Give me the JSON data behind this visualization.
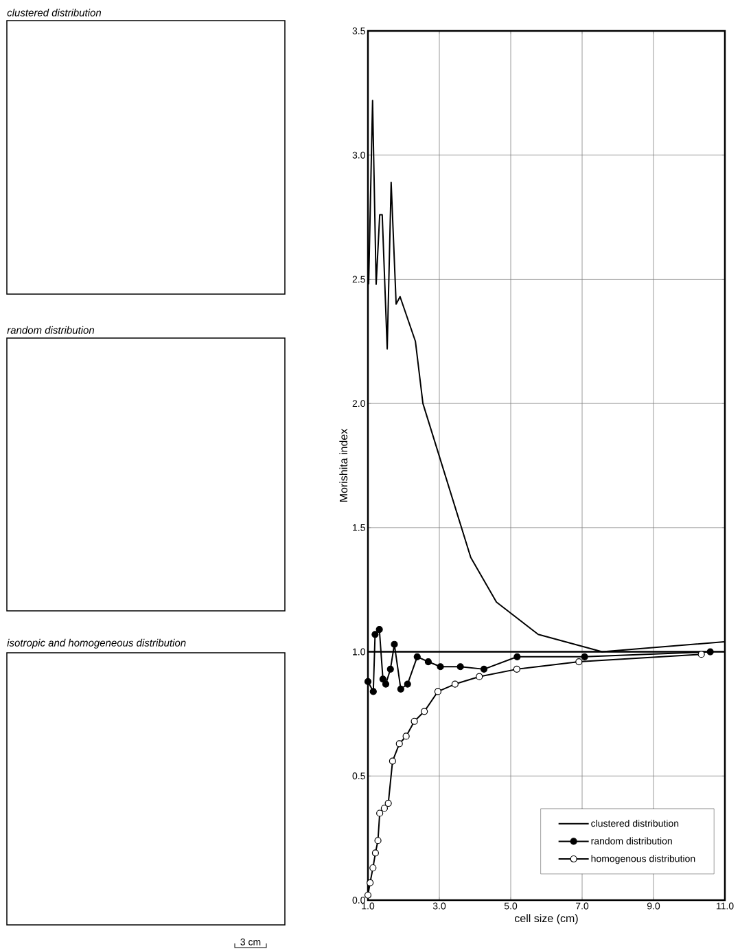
{
  "chart_data": [
    {
      "type": "other",
      "title": "clustered distribution"
    },
    {
      "type": "other",
      "title": "random distribution"
    },
    {
      "type": "other",
      "title": "isotropic and homogeneous distribution",
      "annotations": [
        "3 cm"
      ]
    },
    {
      "type": "line",
      "xlabel": "cell size (cm)",
      "ylabel": "Morishita index",
      "xlim": [
        1.0,
        11.0
      ],
      "ylim": [
        0.0,
        3.5
      ],
      "xticks": [
        {
          "value": 1,
          "label": "1.0"
        },
        {
          "value": 3,
          "label": "3.0"
        },
        {
          "value": 5,
          "label": "5.0"
        },
        {
          "value": 7,
          "label": "7.0"
        },
        {
          "value": 9,
          "label": "9.0"
        },
        {
          "value": 11,
          "label": "11.0"
        }
      ],
      "yticks": [
        {
          "value": 0,
          "label": "0.0"
        },
        {
          "value": 0.5,
          "label": "0.5"
        },
        {
          "value": 1,
          "label": "1.0"
        },
        {
          "value": 1.5,
          "label": "1.5"
        },
        {
          "value": 2,
          "label": "2.0"
        },
        {
          "value": 2.5,
          "label": "2.5"
        },
        {
          "value": 3,
          "label": "3.0"
        },
        {
          "value": 3.5,
          "label": "3.5"
        }
      ],
      "grid": true,
      "legend": "bottom right",
      "ref_lines": [
        {
          "axis": "y",
          "value": 1.0,
          "color": "#000000"
        }
      ],
      "series": [
        {
          "name": "clustered distribution",
          "color": "#000000",
          "marker": "none",
          "x": [
            1.02,
            1.13,
            1.23,
            1.33,
            1.4,
            1.54,
            1.65,
            1.79,
            1.9,
            2.33,
            2.54,
            3.88,
            4.6,
            5.77,
            7.56,
            10.98
          ],
          "values": [
            2.48,
            3.22,
            2.48,
            2.76,
            2.76,
            2.22,
            2.89,
            2.4,
            2.43,
            2.25,
            2.0,
            1.38,
            1.2,
            1.07,
            1.0,
            1.04
          ]
        },
        {
          "name": "random distribution",
          "color": "#000000",
          "marker": "circle",
          "x": [
            1.0,
            1.15,
            1.2,
            1.32,
            1.42,
            1.5,
            1.63,
            1.74,
            1.92,
            2.11,
            2.38,
            2.69,
            3.03,
            3.59,
            4.25,
            5.18,
            7.07,
            10.59
          ],
          "values": [
            0.88,
            0.84,
            1.07,
            1.09,
            0.89,
            0.87,
            0.93,
            1.03,
            0.85,
            0.87,
            0.98,
            0.96,
            0.94,
            0.94,
            0.93,
            0.98,
            0.98,
            1.0
          ]
        },
        {
          "name": "homogenous distribution",
          "color": "#000000",
          "marker": "circle_open",
          "x": [
            1.0,
            1.06,
            1.14,
            1.21,
            1.28,
            1.33,
            1.46,
            1.57,
            1.69,
            1.88,
            2.07,
            2.3,
            2.58,
            2.96,
            3.44,
            4.12,
            5.17,
            6.91,
            10.34
          ],
          "values": [
            0.02,
            0.07,
            0.13,
            0.19,
            0.24,
            0.35,
            0.37,
            0.39,
            0.56,
            0.63,
            0.66,
            0.72,
            0.76,
            0.84,
            0.87,
            0.9,
            0.93,
            0.96,
            0.99
          ]
        }
      ]
    }
  ]
}
